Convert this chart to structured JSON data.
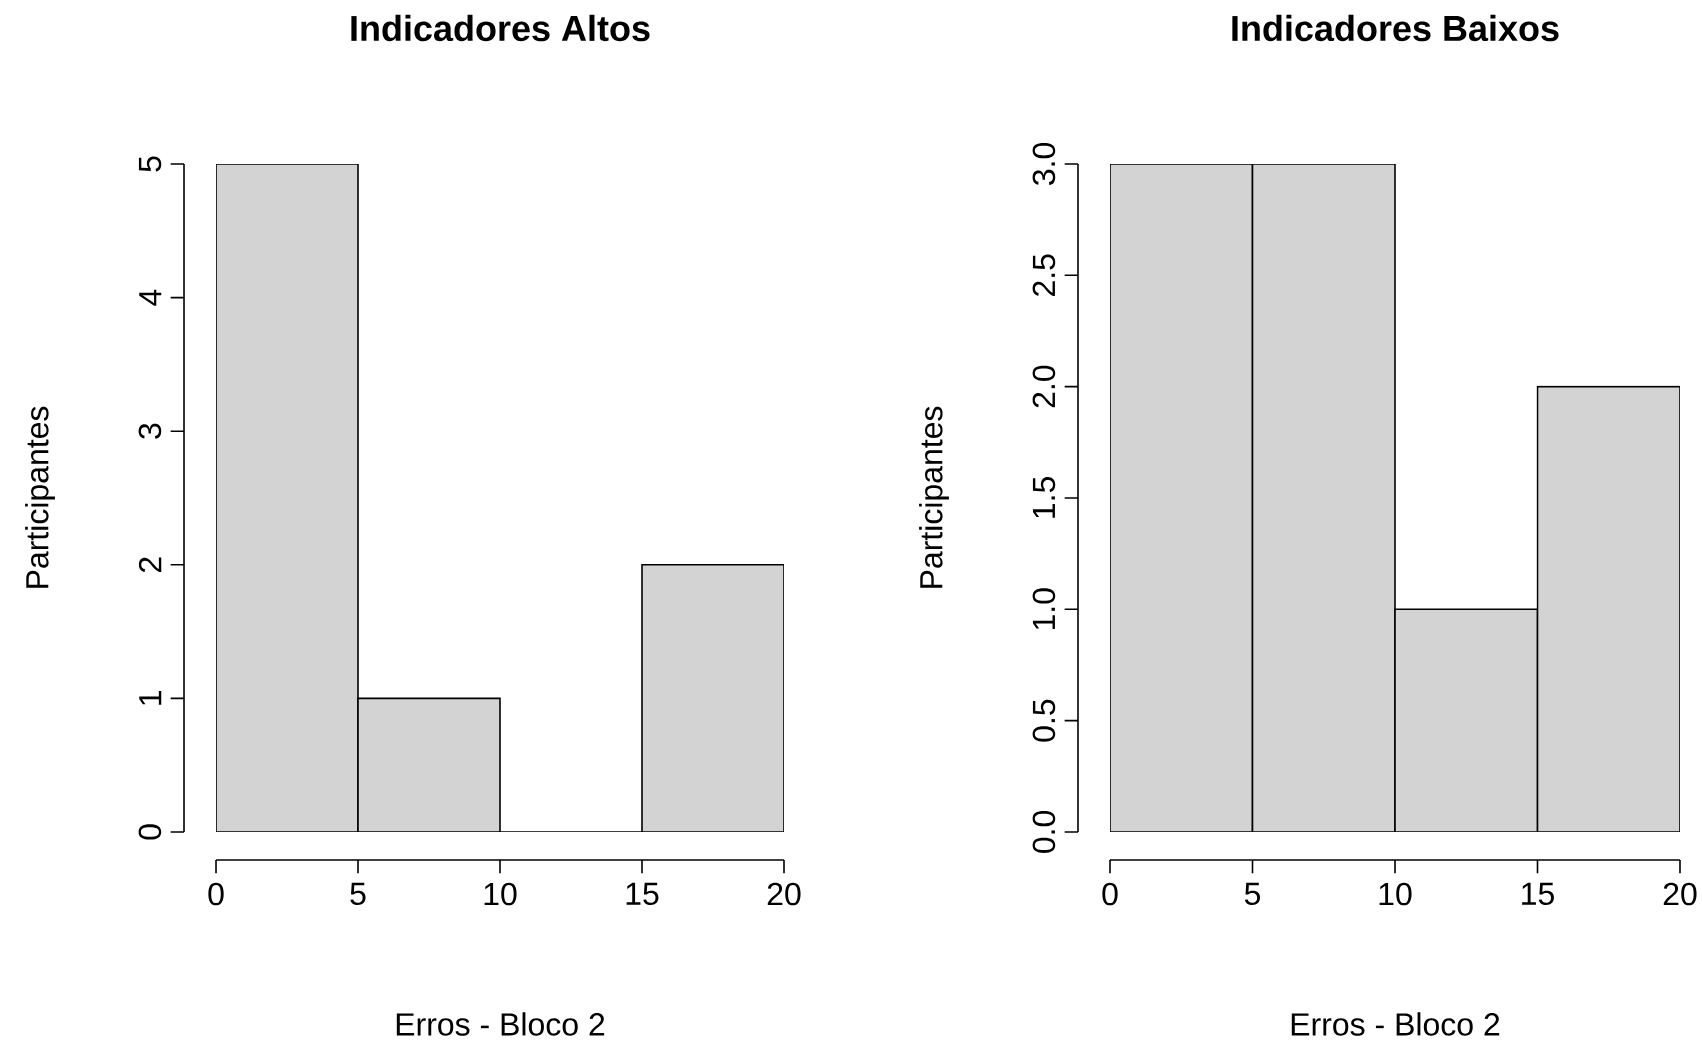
{
  "chart_data": [
    {
      "type": "histogram",
      "title": "Indicadores Altos",
      "xlabel": "Erros - Bloco 2",
      "ylabel": "Participantes",
      "bins": [
        0,
        5,
        10,
        15,
        20
      ],
      "values": [
        5,
        1,
        0,
        2
      ],
      "color": "#d3d3d3",
      "xlim": [
        0,
        20
      ],
      "ylim": [
        0,
        5
      ],
      "xticks": [
        0,
        5,
        10,
        15,
        20
      ],
      "yticks": [
        0,
        1,
        2,
        3,
        4,
        5
      ]
    },
    {
      "type": "histogram",
      "title": "Indicadores Baixos",
      "xlabel": "Erros - Bloco 2",
      "ylabel": "Participantes",
      "bins": [
        0,
        5,
        10,
        15,
        20
      ],
      "values": [
        3,
        3,
        1,
        2
      ],
      "color": "#d3d3d3",
      "xlim": [
        0,
        20
      ],
      "ylim": [
        0,
        3
      ],
      "xticks": [
        0,
        5,
        10,
        15,
        20
      ],
      "yticks": [
        {
          "value": 0,
          "label": "0.0"
        },
        {
          "value": 0.5,
          "label": "0.5"
        },
        {
          "value": 1,
          "label": "1.0"
        },
        {
          "value": 1.5,
          "label": "1.5"
        },
        {
          "value": 2,
          "label": "2.0"
        },
        {
          "value": 2.5,
          "label": "2.5"
        },
        {
          "value": 3,
          "label": "3.0"
        }
      ]
    }
  ]
}
